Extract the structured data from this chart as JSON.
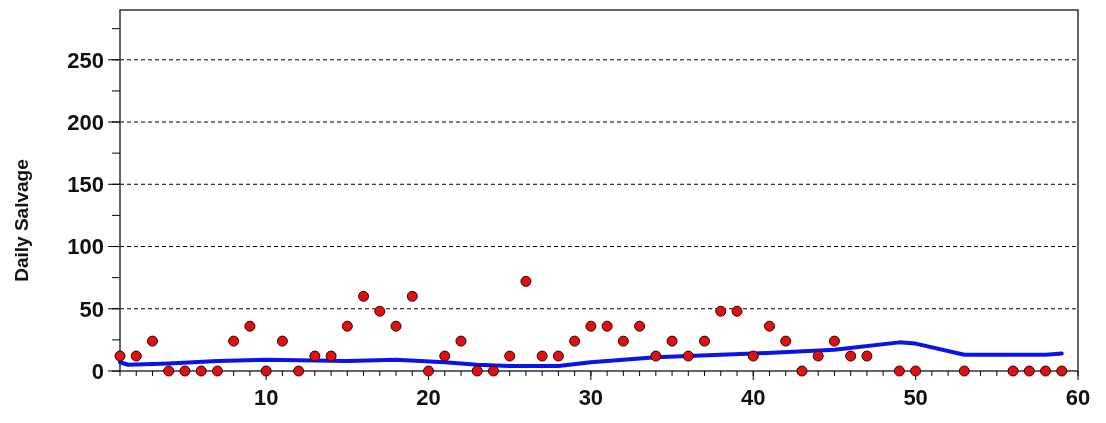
{
  "chart_data": {
    "type": "scatter",
    "ylabel": "Daily Salvage",
    "xlim": [
      1,
      60
    ],
    "ylim": [
      0,
      290
    ],
    "xticks": [
      10,
      20,
      30,
      40,
      50,
      60
    ],
    "yticks": [
      0,
      50,
      100,
      150,
      200,
      250
    ],
    "grid": "y",
    "marker": "circle",
    "series": [
      {
        "color": "#dd1111",
        "x": [
          1,
          2,
          3,
          4,
          5,
          6,
          7,
          8,
          9,
          10,
          11,
          12,
          13,
          14,
          15,
          16,
          17,
          18,
          19,
          20,
          21,
          22,
          23,
          24,
          25,
          26,
          27,
          28,
          29,
          30,
          31,
          32,
          33,
          34,
          35,
          36,
          37,
          38,
          39,
          40,
          41,
          42,
          43,
          44,
          45,
          46,
          47,
          49,
          50,
          53,
          56,
          57,
          58,
          59
        ],
        "values": [
          12,
          12,
          24,
          0,
          0,
          0,
          0,
          24,
          36,
          0,
          24,
          0,
          12,
          12,
          36,
          60,
          48,
          36,
          60,
          0,
          12,
          24,
          0,
          0,
          12,
          72,
          12,
          12,
          24,
          36,
          36,
          24,
          36,
          12,
          24,
          12,
          24,
          48,
          48,
          12,
          36,
          24,
          0,
          12,
          24,
          12,
          12,
          0,
          0,
          0,
          0,
          0,
          0,
          0
        ]
      },
      {
        "type": "line",
        "color": "#0a14e6",
        "marker": "none",
        "line_style": "solid",
        "x": [
          1,
          1.5,
          4,
          7,
          10,
          15,
          18,
          21,
          23,
          25,
          28,
          30,
          34,
          36,
          40,
          45,
          49,
          50,
          53,
          58,
          59
        ],
        "values": [
          7,
          5,
          6,
          8,
          9,
          8,
          9,
          7,
          5,
          4,
          4,
          7,
          11,
          12,
          14,
          17,
          23,
          22,
          13,
          13,
          14
        ]
      }
    ]
  }
}
